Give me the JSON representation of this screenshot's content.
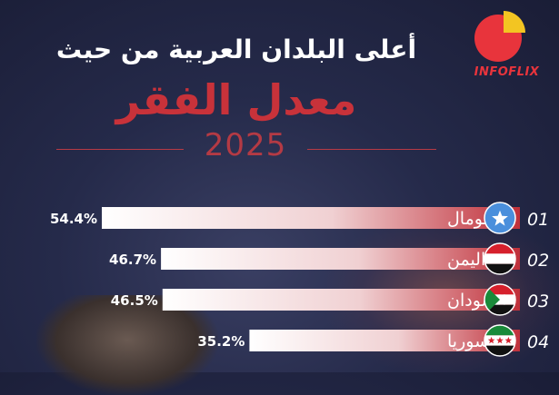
{
  "header": {
    "headline": "أعلى البلدان العربية من حيث",
    "title": "معدل الفقر",
    "year": "2025"
  },
  "logo": {
    "text": "INFOFLIX",
    "colors": {
      "red": "#e8343c",
      "yellow": "#f3c522"
    }
  },
  "chart_data": {
    "type": "bar",
    "orientation": "horizontal",
    "categories": [
      "الصومال",
      "اليمن",
      "السودان",
      "سوريا"
    ],
    "ranks": [
      "01",
      "02",
      "03",
      "04"
    ],
    "values": [
      54.4,
      46.7,
      46.5,
      35.2
    ],
    "value_labels": [
      "54.4%",
      "46.7%",
      "46.5%",
      "35.2%"
    ],
    "flags": [
      "somalia-flag",
      "yemen-flag",
      "sudan-flag",
      "syria-flag"
    ],
    "unit": "%",
    "bar_colors": {
      "start": "#ffffff",
      "end": "#c0303a"
    }
  }
}
